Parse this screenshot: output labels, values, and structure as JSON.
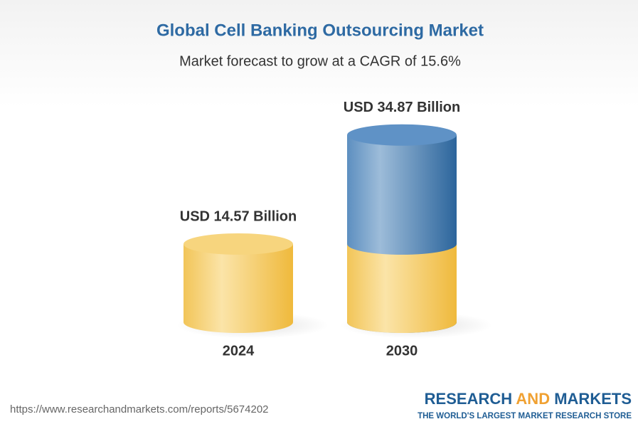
{
  "chart_data": {
    "type": "cylinder-bar",
    "title": "Global Cell Banking Outsourcing Market",
    "subtitle": "Market forecast to grow at a CAGR of 15.6%",
    "categories": [
      "2024",
      "2030"
    ],
    "values": [
      14.57,
      34.87
    ],
    "value_labels": [
      "USD 14.57 Billion",
      "USD 34.87 Billion"
    ],
    "colors": [
      "#f2c14e",
      "#3f78aa"
    ]
  },
  "footer": {
    "url": "https://www.researchandmarkets.com/reports/5674202",
    "brand_research": "RESEARCH",
    "brand_and": "AND",
    "brand_markets": "MARKETS",
    "tagline": "THE WORLD'S LARGEST MARKET RESEARCH STORE"
  }
}
